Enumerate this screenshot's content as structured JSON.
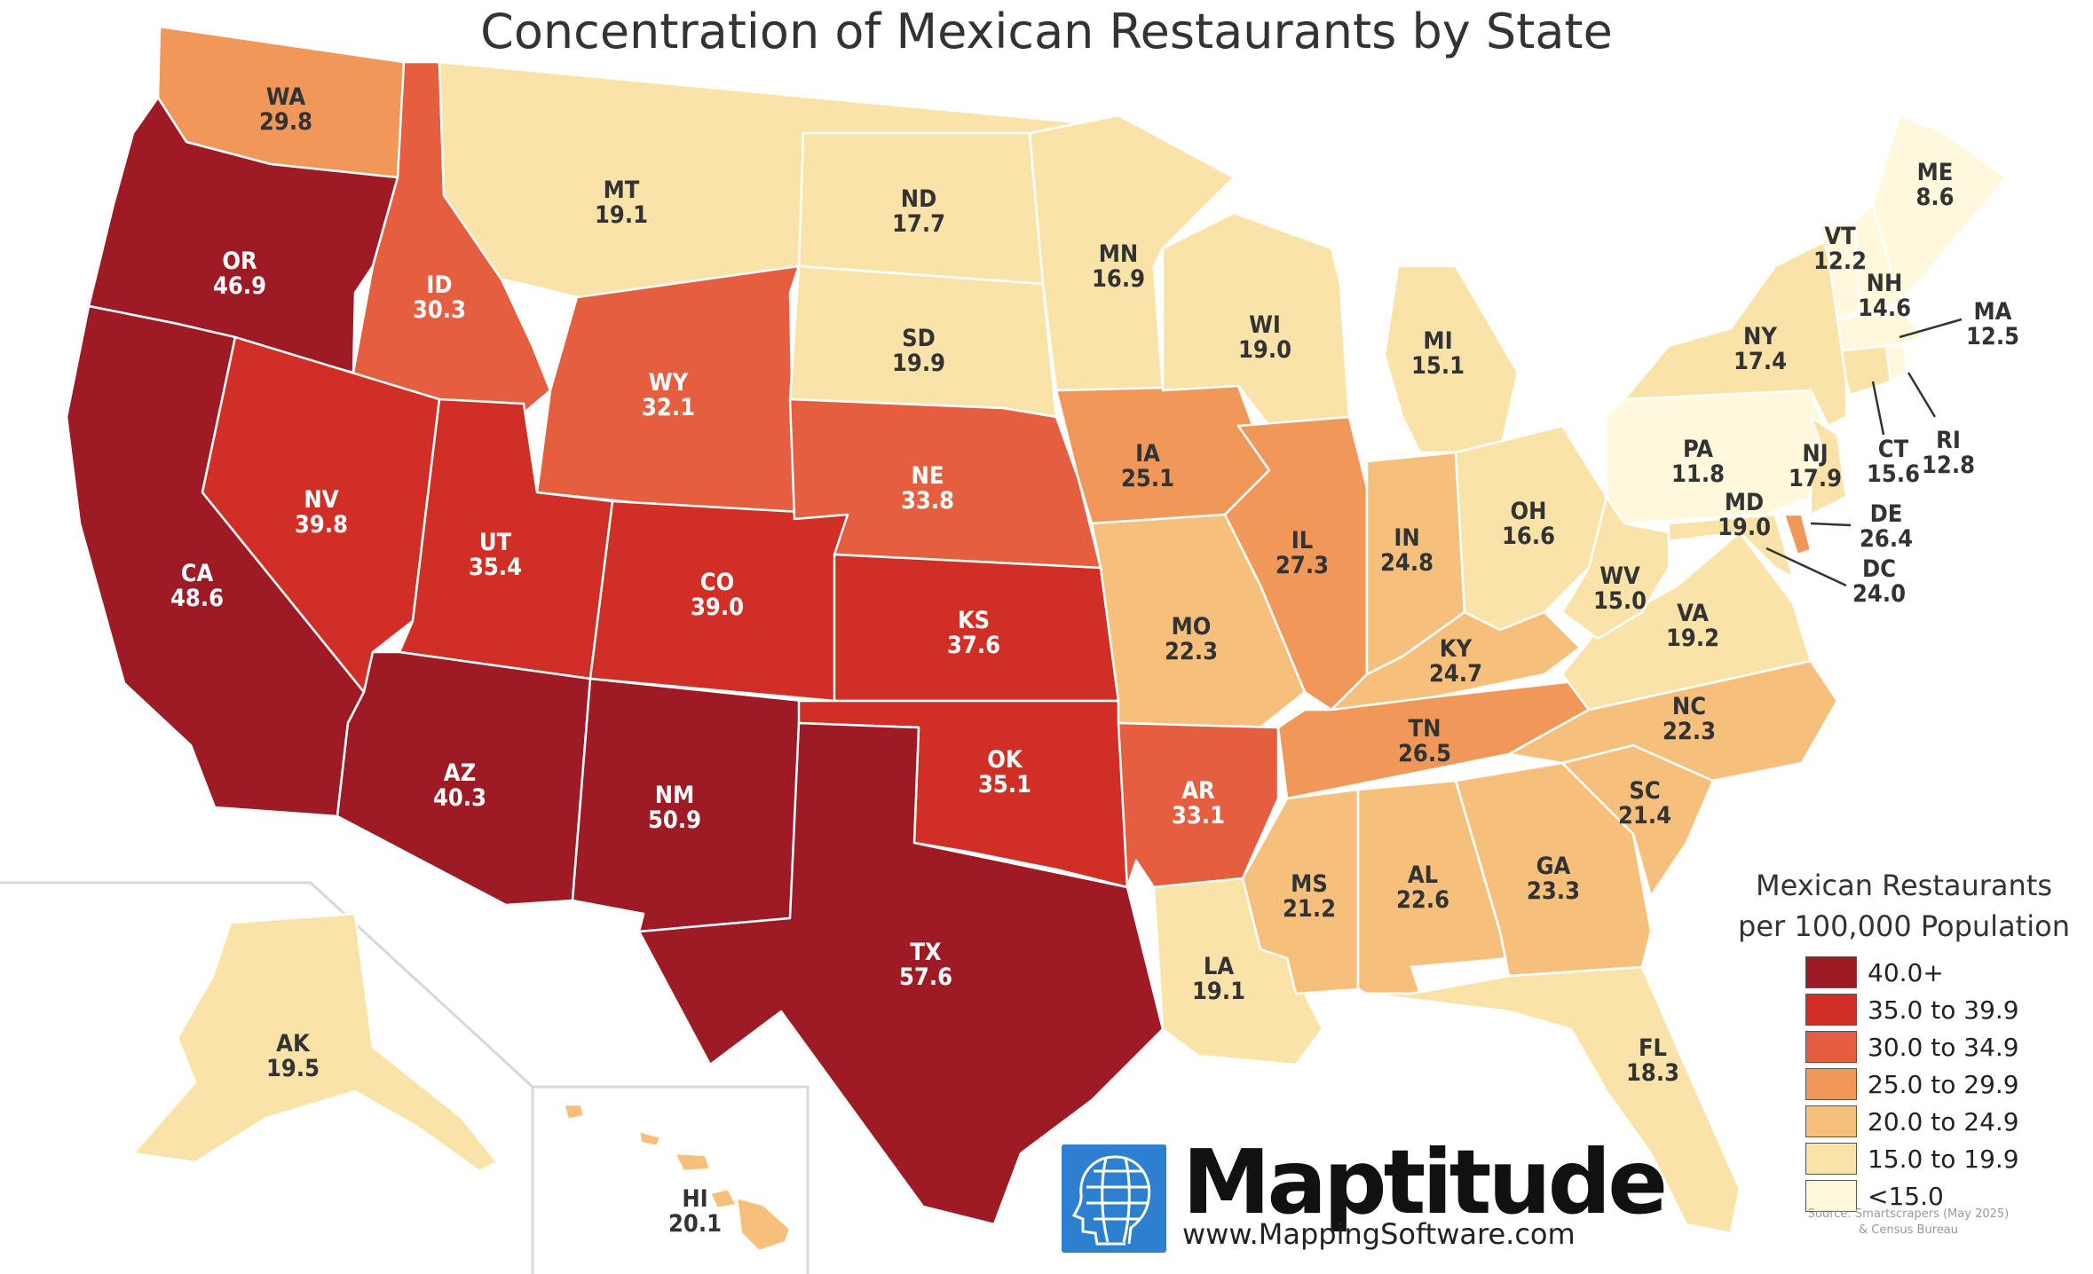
{
  "title": "Concentration of Mexican Restaurants by State",
  "legend": {
    "title_line1": "Mexican Restaurants",
    "title_line2": "per 100,000 Population",
    "classes": [
      {
        "label": "40.0+",
        "color": "#9e1b25"
      },
      {
        "label": "35.0 to 39.9",
        "color": "#d12f26"
      },
      {
        "label": "30.0 to 34.9",
        "color": "#e55e40"
      },
      {
        "label": "25.0 to 29.9",
        "color": "#f0985a"
      },
      {
        "label": "20.0 to 24.9",
        "color": "#f6c07c"
      },
      {
        "label": "15.0 to 19.9",
        "color": "#fae3a8"
      },
      {
        "label": "<15.0",
        "color": "#fff8dc"
      }
    ],
    "source_line1": "Source: Smartscrapers (May 2025)",
    "source_line2": "& Census Bureau"
  },
  "brand": {
    "name": "Maptitude",
    "url": "www.MappingSoftware.com",
    "logo_icon": "globe-head-icon"
  },
  "states": {
    "WA": {
      "value": "29.8",
      "class": 3
    },
    "OR": {
      "value": "46.9",
      "class": 0
    },
    "CA": {
      "value": "48.6",
      "class": 0
    },
    "ID": {
      "value": "30.3",
      "class": 2
    },
    "NV": {
      "value": "39.8",
      "class": 1
    },
    "MT": {
      "value": "19.1",
      "class": 5
    },
    "WY": {
      "value": "32.1",
      "class": 2
    },
    "UT": {
      "value": "35.4",
      "class": 1
    },
    "AZ": {
      "value": "40.3",
      "class": 0
    },
    "CO": {
      "value": "39.0",
      "class": 1
    },
    "NM": {
      "value": "50.9",
      "class": 0
    },
    "ND": {
      "value": "17.7",
      "class": 5
    },
    "SD": {
      "value": "19.9",
      "class": 5
    },
    "NE": {
      "value": "33.8",
      "class": 2
    },
    "KS": {
      "value": "37.6",
      "class": 1
    },
    "OK": {
      "value": "35.1",
      "class": 1
    },
    "TX": {
      "value": "57.6",
      "class": 0
    },
    "MN": {
      "value": "16.9",
      "class": 5
    },
    "IA": {
      "value": "25.1",
      "class": 3
    },
    "MO": {
      "value": "22.3",
      "class": 4
    },
    "AR": {
      "value": "33.1",
      "class": 2
    },
    "LA": {
      "value": "19.1",
      "class": 5
    },
    "WI": {
      "value": "19.0",
      "class": 5
    },
    "IL": {
      "value": "27.3",
      "class": 3
    },
    "MI": {
      "value": "15.1",
      "class": 5
    },
    "IN": {
      "value": "24.8",
      "class": 4
    },
    "OH": {
      "value": "16.6",
      "class": 5
    },
    "KY": {
      "value": "24.7",
      "class": 4
    },
    "TN": {
      "value": "26.5",
      "class": 3
    },
    "MS": {
      "value": "21.2",
      "class": 4
    },
    "AL": {
      "value": "22.6",
      "class": 4
    },
    "GA": {
      "value": "23.3",
      "class": 4
    },
    "FL": {
      "value": "18.3",
      "class": 5
    },
    "SC": {
      "value": "21.4",
      "class": 4
    },
    "NC": {
      "value": "22.3",
      "class": 4
    },
    "VA": {
      "value": "19.2",
      "class": 5
    },
    "WV": {
      "value": "15.0",
      "class": 5
    },
    "MD": {
      "value": "19.0",
      "class": 5
    },
    "DE": {
      "value": "26.4",
      "class": 3
    },
    "DC": {
      "value": "24.0",
      "class": 4
    },
    "PA": {
      "value": "11.8",
      "class": 6
    },
    "NJ": {
      "value": "17.9",
      "class": 5
    },
    "NY": {
      "value": "17.4",
      "class": 5
    },
    "CT": {
      "value": "15.6",
      "class": 5
    },
    "RI": {
      "value": "12.8",
      "class": 6
    },
    "MA": {
      "value": "12.5",
      "class": 6
    },
    "VT": {
      "value": "12.2",
      "class": 6
    },
    "NH": {
      "value": "14.6",
      "class": 6
    },
    "ME": {
      "value": "8.6",
      "class": 6
    },
    "AK": {
      "value": "19.5",
      "class": 5
    },
    "HI": {
      "value": "20.1",
      "class": 4
    }
  }
}
